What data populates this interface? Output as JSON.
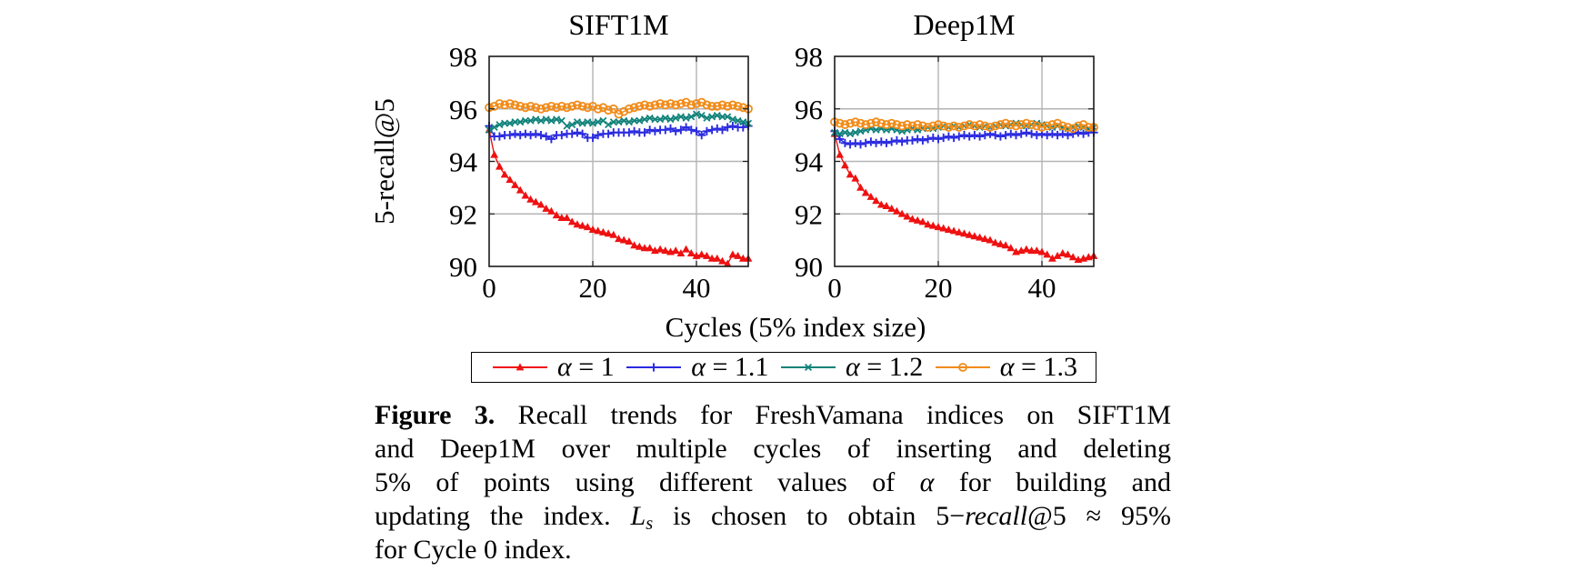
{
  "colors": {
    "alpha1": "#ee1111",
    "alpha11": "#2a2ae0",
    "alpha12": "#10827a",
    "alpha13": "#f28b18",
    "grid": "#b4b4b4",
    "axis": "#1a1a1a"
  },
  "legend": {
    "items": [
      {
        "key": "alpha-1",
        "symbol": "α",
        "value": " = 1",
        "marker": "triangle",
        "color": "#ee1111"
      },
      {
        "key": "alpha-1.1",
        "symbol": "α",
        "value": " = 1.1",
        "marker": "plus",
        "color": "#2a2ae0"
      },
      {
        "key": "alpha-1.2",
        "symbol": "α",
        "value": " = 1.2",
        "marker": "x",
        "color": "#10827a"
      },
      {
        "key": "alpha-1.3",
        "symbol": "α",
        "value": " = 1.3",
        "marker": "circle",
        "color": "#f28b18"
      }
    ]
  },
  "caption": {
    "label": "Figure 3.",
    "line1_rest": " Recall trends for FreshVamana indices on SIFT1M",
    "line2": "and Deep1M over multiple cycles of inserting and deleting",
    "line3_pre": "5% of points using different values of ",
    "alpha": "α",
    "line3_post": " for building and",
    "line4_pre": "updating the index. ",
    "L": "L",
    "s": "s",
    "line4_mid": " is chosen to obtain 5−",
    "recall": "recall",
    "line4_post": "@5 ≈ 95%",
    "line5": "for Cycle 0 index."
  },
  "chart_data": {
    "type": "line",
    "xlabel": "Cycles (5% index size)",
    "ylabel": "5-recall@5",
    "xlim": [
      0,
      50
    ],
    "ylim": [
      90,
      98
    ],
    "x_ticks": [
      0,
      20,
      40
    ],
    "y_ticks": [
      90,
      92,
      94,
      96,
      98
    ],
    "grid": true,
    "legend_position": "below",
    "x": [
      0,
      1,
      2,
      3,
      4,
      5,
      6,
      7,
      8,
      9,
      10,
      11,
      12,
      13,
      14,
      15,
      16,
      17,
      18,
      19,
      20,
      21,
      22,
      23,
      24,
      25,
      26,
      27,
      28,
      29,
      30,
      31,
      32,
      33,
      34,
      35,
      36,
      37,
      38,
      39,
      40,
      41,
      42,
      43,
      44,
      45,
      46,
      47,
      48,
      49,
      50
    ],
    "charts": [
      {
        "id": "sift1m",
        "title": "SIFT1M",
        "series": [
          {
            "name": "α = 1",
            "key": "alpha-1",
            "color": "#ee1111",
            "marker": "triangle",
            "values": [
              95.2,
              94.25,
              93.8,
              93.5,
              93.3,
              93.1,
              92.9,
              92.7,
              92.55,
              92.45,
              92.35,
              92.2,
              92.1,
              91.95,
              91.85,
              91.85,
              91.7,
              91.6,
              91.55,
              91.5,
              91.4,
              91.35,
              91.3,
              91.25,
              91.2,
              91.05,
              91.0,
              90.95,
              90.8,
              90.75,
              90.7,
              90.7,
              90.6,
              90.65,
              90.6,
              90.55,
              90.6,
              90.5,
              90.65,
              90.5,
              90.4,
              90.45,
              90.4,
              90.3,
              90.3,
              90.2,
              90.1,
              90.45,
              90.4,
              90.3,
              90.3
            ]
          },
          {
            "name": "α = 1.1",
            "key": "alpha-1.1",
            "color": "#2a2ae0",
            "marker": "plus",
            "values": [
              95.35,
              94.95,
              94.95,
              95.0,
              95.0,
              95.05,
              95.0,
              95.05,
              95.0,
              95.05,
              95.0,
              94.95,
              94.85,
              95.0,
              95.0,
              95.05,
              95.05,
              95.1,
              95.05,
              94.9,
              94.9,
              95.0,
              95.05,
              95.05,
              95.1,
              95.1,
              95.1,
              95.1,
              95.15,
              95.1,
              95.1,
              95.2,
              95.15,
              95.2,
              95.2,
              95.25,
              95.15,
              95.2,
              95.3,
              95.2,
              95.15,
              95.0,
              95.15,
              95.2,
              95.25,
              95.2,
              95.3,
              95.35,
              95.3,
              95.3,
              95.35
            ]
          },
          {
            "name": "α = 1.2",
            "key": "alpha-1.2",
            "color": "#10827a",
            "marker": "x",
            "values": [
              95.2,
              95.3,
              95.4,
              95.45,
              95.45,
              95.5,
              95.5,
              95.55,
              95.55,
              95.6,
              95.55,
              95.6,
              95.55,
              95.6,
              95.55,
              95.35,
              95.4,
              95.5,
              95.45,
              95.5,
              95.45,
              95.5,
              95.55,
              95.4,
              95.5,
              95.5,
              95.55,
              95.5,
              95.55,
              95.55,
              95.6,
              95.65,
              95.6,
              95.6,
              95.65,
              95.6,
              95.65,
              95.7,
              95.65,
              95.7,
              95.8,
              95.75,
              95.65,
              95.7,
              95.75,
              95.7,
              95.7,
              95.6,
              95.55,
              95.5,
              95.45
            ]
          },
          {
            "name": "α = 1.3",
            "key": "alpha-1.3",
            "color": "#f28b18",
            "marker": "circle",
            "values": [
              96.05,
              96.1,
              96.2,
              96.15,
              96.2,
              96.15,
              96.1,
              96.05,
              96.1,
              96.05,
              96.0,
              96.05,
              96.1,
              96.05,
              96.1,
              96.05,
              96.1,
              96.15,
              96.1,
              96.05,
              96.1,
              96.0,
              96.05,
              95.95,
              96.0,
              95.8,
              95.9,
              96.0,
              96.05,
              96.1,
              96.15,
              96.1,
              96.15,
              96.2,
              96.15,
              96.2,
              96.15,
              96.2,
              96.25,
              96.15,
              96.2,
              96.25,
              96.15,
              96.1,
              96.1,
              96.15,
              96.1,
              96.15,
              96.1,
              96.05,
              96.0
            ]
          }
        ]
      },
      {
        "id": "deep1m",
        "title": "Deep1M",
        "series": [
          {
            "name": "α = 1",
            "key": "alpha-1",
            "color": "#ee1111",
            "marker": "triangle",
            "values": [
              95.05,
              94.25,
              93.85,
              93.5,
              93.35,
              93.0,
              92.8,
              92.65,
              92.5,
              92.35,
              92.3,
              92.2,
              92.1,
              92.0,
              91.9,
              91.8,
              91.75,
              91.7,
              91.6,
              91.55,
              91.5,
              91.45,
              91.4,
              91.35,
              91.3,
              91.25,
              91.2,
              91.15,
              91.1,
              91.05,
              91.0,
              90.9,
              90.85,
              90.8,
              90.7,
              90.55,
              90.6,
              90.65,
              90.6,
              90.6,
              90.55,
              90.45,
              90.3,
              90.4,
              90.5,
              90.45,
              90.35,
              90.25,
              90.3,
              90.35,
              90.4
            ]
          },
          {
            "name": "α = 1.1",
            "key": "alpha-1.1",
            "color": "#2a2ae0",
            "marker": "plus",
            "values": [
              95.15,
              94.85,
              94.7,
              94.65,
              94.7,
              94.65,
              94.7,
              94.75,
              94.7,
              94.75,
              94.7,
              94.75,
              94.8,
              94.75,
              94.8,
              94.8,
              94.85,
              94.8,
              94.85,
              94.9,
              94.85,
              94.9,
              94.95,
              94.9,
              94.95,
              95.0,
              94.95,
              95.0,
              94.95,
              95.0,
              95.05,
              95.0,
              94.95,
              95.0,
              95.05,
              95.0,
              95.05,
              95.1,
              95.05,
              95.0,
              95.05,
              95.0,
              95.05,
              95.0,
              95.05,
              95.0,
              95.05,
              95.1,
              95.05,
              95.1,
              95.1
            ]
          },
          {
            "name": "α = 1.2",
            "key": "alpha-1.2",
            "color": "#10827a",
            "marker": "x",
            "values": [
              95.1,
              95.05,
              95.1,
              95.05,
              95.1,
              95.15,
              95.2,
              95.25,
              95.2,
              95.25,
              95.2,
              95.25,
              95.2,
              95.15,
              95.2,
              95.25,
              95.2,
              95.25,
              95.3,
              95.25,
              95.3,
              95.35,
              95.3,
              95.35,
              95.3,
              95.35,
              95.4,
              95.35,
              95.3,
              95.35,
              95.3,
              95.35,
              95.4,
              95.35,
              95.4,
              95.45,
              95.4,
              95.35,
              95.4,
              95.45,
              95.4,
              95.35,
              95.3,
              95.35,
              95.3,
              95.25,
              95.3,
              95.35,
              95.3,
              95.25,
              95.3
            ]
          },
          {
            "name": "α = 1.3",
            "key": "alpha-1.3",
            "color": "#f28b18",
            "marker": "circle",
            "values": [
              95.5,
              95.45,
              95.4,
              95.45,
              95.5,
              95.45,
              95.4,
              95.45,
              95.5,
              95.45,
              95.4,
              95.45,
              95.4,
              95.35,
              95.4,
              95.35,
              95.4,
              95.35,
              95.3,
              95.35,
              95.4,
              95.35,
              95.3,
              95.35,
              95.3,
              95.35,
              95.4,
              95.35,
              95.4,
              95.35,
              95.3,
              95.35,
              95.4,
              95.45,
              95.4,
              95.35,
              95.4,
              95.45,
              95.4,
              95.35,
              95.3,
              95.35,
              95.4,
              95.45,
              95.35,
              95.3,
              95.25,
              95.35,
              95.4,
              95.3,
              95.3
            ]
          }
        ]
      }
    ]
  }
}
